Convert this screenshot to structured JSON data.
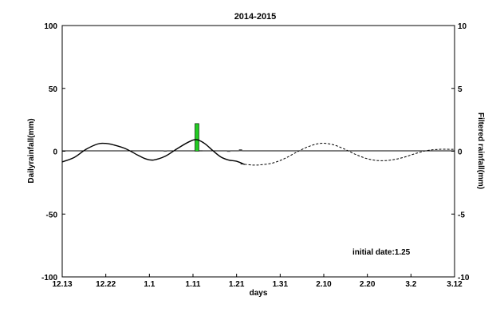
{
  "chart_data": {
    "type": "bar+line",
    "title": "2014-2015",
    "xlabel": "days",
    "ylabel_left": "Dailyrainfall(mm)",
    "ylabel_right": "Filtered rainfall(mm)",
    "annotation": "initial date:1.25",
    "x_ticks": [
      "12.13",
      "12.22",
      "1.1",
      "1.11",
      "1.21",
      "1.31",
      "2.10",
      "2.20",
      "3.2",
      "3.12"
    ],
    "left_axis": {
      "ylim": [
        -100,
        100
      ],
      "ticks": [
        "100",
        "50",
        "0",
        "-50",
        "-100"
      ]
    },
    "right_axis": {
      "ylim": [
        -10,
        10
      ],
      "ticks": [
        "10",
        "5",
        "0",
        "-5",
        "-10"
      ]
    },
    "xlim_days": [
      0,
      99
    ],
    "grid": false,
    "series": [
      {
        "kind": "bar",
        "axis": "left",
        "color": "#22cc22",
        "x_days": [
          34
        ],
        "values": [
          22
        ]
      },
      {
        "kind": "bar",
        "axis": "left",
        "color": "#444444",
        "x_days": [
          26,
          35,
          42,
          45
        ],
        "values": [
          0.6,
          0.8,
          0.5,
          1.5
        ]
      },
      {
        "kind": "line",
        "axis": "right",
        "style": "solid",
        "x_days": [
          0,
          3,
          6,
          9,
          11,
          13,
          16,
          19,
          21,
          23,
          26,
          29,
          32,
          34,
          36,
          38,
          40,
          42,
          44,
          46
        ],
        "values": [
          -0.85,
          -0.5,
          0.15,
          0.58,
          0.62,
          0.5,
          0.2,
          -0.3,
          -0.6,
          -0.7,
          -0.4,
          0.2,
          0.75,
          0.92,
          0.6,
          0.05,
          -0.45,
          -0.7,
          -0.8,
          -1.05
        ]
      },
      {
        "kind": "line",
        "axis": "right",
        "style": "dashed",
        "x_days": [
          45,
          48,
          50,
          53,
          56,
          59,
          62,
          65,
          68,
          71,
          74,
          77,
          80,
          83,
          86,
          89,
          92,
          95,
          99
        ],
        "values": [
          -1.0,
          -1.1,
          -1.08,
          -0.95,
          -0.6,
          -0.1,
          0.35,
          0.62,
          0.55,
          0.2,
          -0.25,
          -0.6,
          -0.75,
          -0.7,
          -0.5,
          -0.2,
          0.05,
          0.15,
          0.15
        ]
      }
    ]
  }
}
